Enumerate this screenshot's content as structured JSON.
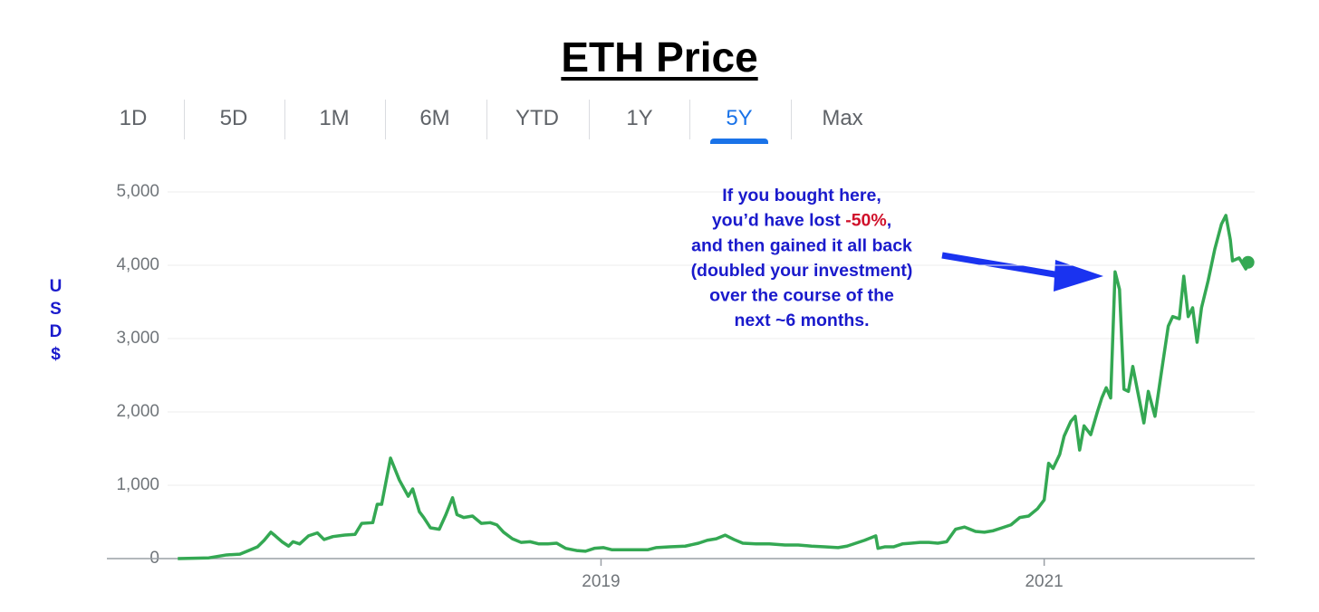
{
  "chart_data": {
    "type": "line",
    "title": "ETH Price",
    "tabs": [
      "1D",
      "5D",
      "1M",
      "6M",
      "YTD",
      "1Y",
      "5Y",
      "Max"
    ],
    "selected_tab": 6,
    "y_label": "USD$",
    "annotation": {
      "line1": "If you bought here,",
      "line2_before": "you’d have lost ",
      "highlight": "-50%",
      "line2_after": ",",
      "more_lines": [
        "and then gained it all back",
        "(doubled your investment)",
        "over the course of the",
        "next ~6 months."
      ]
    },
    "color": "#34a853",
    "highlight_color": "#d0112b",
    "annotation_color": "#1a1acc",
    "grid": true,
    "xlim": [
      2016.77,
      2021.95
    ],
    "xticks": [
      2019,
      2021
    ],
    "ylim": [
      0,
      5000
    ],
    "yticks": [
      0,
      {
        "value": 1000,
        "label": "1,000"
      },
      {
        "value": 2000,
        "label": "2,000"
      },
      {
        "value": 3000,
        "label": "3,000"
      },
      {
        "value": 4000,
        "label": "4,000"
      },
      {
        "value": 5000,
        "label": "5,000"
      }
    ],
    "x": [
      2017.09,
      2017.23,
      2017.31,
      2017.37,
      2017.41,
      2017.45,
      2017.48,
      2017.51,
      2017.53,
      2017.56,
      2017.59,
      2017.61,
      2017.64,
      2017.68,
      2017.72,
      2017.75,
      2017.79,
      2017.84,
      2017.89,
      2017.92,
      2017.97,
      2017.99,
      2018.01,
      2018.05,
      2018.09,
      2018.13,
      2018.15,
      2018.18,
      2018.2,
      2018.23,
      2018.27,
      2018.3,
      2018.33,
      2018.35,
      2018.38,
      2018.42,
      2018.46,
      2018.5,
      2018.53,
      2018.56,
      2018.6,
      2018.64,
      2018.68,
      2018.72,
      2018.76,
      2018.8,
      2018.84,
      2018.89,
      2018.93,
      2018.97,
      2019.01,
      2019.05,
      2019.11,
      2019.15,
      2019.21,
      2019.25,
      2019.31,
      2019.38,
      2019.44,
      2019.48,
      2019.52,
      2019.56,
      2019.6,
      2019.64,
      2019.7,
      2019.76,
      2019.83,
      2019.89,
      2019.95,
      2020.01,
      2020.07,
      2020.11,
      2020.15,
      2020.19,
      2020.24,
      2020.25,
      2020.28,
      2020.32,
      2020.36,
      2020.4,
      2020.44,
      2020.48,
      2020.52,
      2020.56,
      2020.6,
      2020.64,
      2020.69,
      2020.73,
      2020.77,
      2020.81,
      2020.85,
      2020.89,
      2020.93,
      2020.97,
      2021.0,
      2021.02,
      2021.04,
      2021.07,
      2021.09,
      2021.12,
      2021.14,
      2021.16,
      2021.18,
      2021.21,
      2021.24,
      2021.26,
      2021.28,
      2021.3,
      2021.32,
      2021.34,
      2021.36,
      2021.38,
      2021.4,
      2021.42,
      2021.45,
      2021.47,
      2021.5,
      2021.53,
      2021.56,
      2021.58,
      2021.61,
      2021.63,
      2021.65,
      2021.67,
      2021.69,
      2021.71,
      2021.74,
      2021.77,
      2021.8,
      2021.82,
      2021.84,
      2021.85,
      2021.88,
      2021.91,
      2021.92
    ],
    "values": [
      0,
      10,
      50,
      60,
      110,
      160,
      250,
      360,
      310,
      230,
      170,
      230,
      200,
      310,
      350,
      260,
      300,
      320,
      330,
      480,
      490,
      740,
      740,
      1370,
      1070,
      850,
      950,
      640,
      560,
      420,
      400,
      600,
      830,
      600,
      560,
      580,
      480,
      490,
      460,
      360,
      270,
      220,
      230,
      200,
      200,
      210,
      140,
      110,
      100,
      140,
      150,
      120,
      120,
      120,
      120,
      150,
      160,
      170,
      210,
      250,
      270,
      320,
      260,
      210,
      200,
      200,
      185,
      185,
      170,
      160,
      150,
      170,
      210,
      250,
      310,
      140,
      160,
      160,
      200,
      210,
      220,
      220,
      210,
      230,
      400,
      430,
      370,
      360,
      380,
      420,
      460,
      560,
      580,
      680,
      800,
      1300,
      1230,
      1420,
      1670,
      1870,
      1940,
      1480,
      1810,
      1690,
      2000,
      2190,
      2330,
      2190,
      3910,
      3670,
      2310,
      2280,
      2620,
      2310,
      1850,
      2280,
      1940,
      2560,
      3170,
      3300,
      3270,
      3850,
      3300,
      3420,
      2950,
      3420,
      3790,
      4220,
      4560,
      4680,
      4350,
      4060,
      4100,
      3950,
      4040
    ]
  }
}
